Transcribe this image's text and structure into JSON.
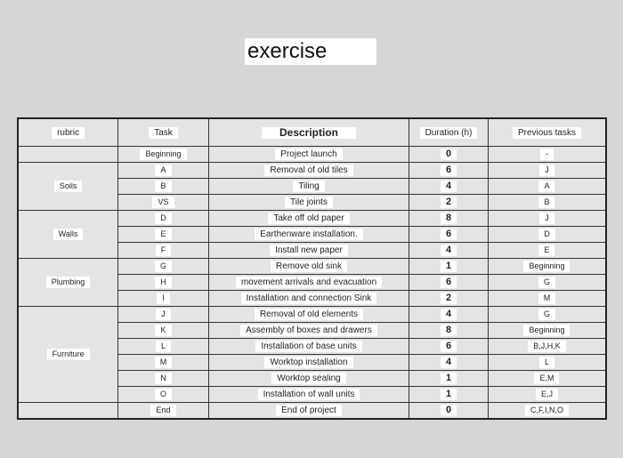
{
  "title": "exercise",
  "table": {
    "header": [
      "rubric",
      "Task",
      "Description",
      "Duration (h)",
      "Previous tasks"
    ],
    "groups": [
      {
        "rows": [
          [
            "Beginning",
            "Project launch",
            0,
            "-"
          ]
        ]
      },
      {
        "label": "Soils",
        "rows": [
          [
            "A",
            "Removal of old tiles",
            6,
            "J"
          ],
          [
            "B",
            "Tiling",
            4,
            "A"
          ],
          [
            "VS",
            "Tile joints",
            2,
            "B"
          ]
        ]
      },
      {
        "label": "Walls",
        "rows": [
          [
            "D",
            "Take off old paper",
            8,
            "J"
          ],
          [
            "E",
            "Earthenware installation.",
            6,
            "D"
          ],
          [
            "F",
            "Install new paper",
            4,
            "E"
          ]
        ]
      },
      {
        "label": "Plumbing",
        "rows": [
          [
            "G",
            "Remove old sink",
            1,
            "Beginning"
          ],
          [
            "H",
            "movement arrivals and evacuation",
            6,
            "G"
          ],
          [
            "I",
            "Installation and connection Sink",
            2,
            "M"
          ]
        ]
      },
      {
        "label": "Furniture",
        "rows": [
          [
            "J",
            "Removal of old elements",
            4,
            "G"
          ],
          [
            "K",
            "Assembly of boxes and drawers",
            8,
            "Beginning"
          ],
          [
            "L",
            "Installation of base units",
            6,
            "B,J,H,K"
          ],
          [
            "M",
            "Worktop installation",
            4,
            "L"
          ],
          [
            "N",
            "Worktop sealing",
            1,
            "E,M"
          ],
          [
            "O",
            "Installation of wall units",
            1,
            "E,J"
          ]
        ]
      },
      {
        "rows": [
          [
            "End",
            "End of project",
            0,
            "C,F,I,N,O"
          ]
        ]
      }
    ]
  }
}
